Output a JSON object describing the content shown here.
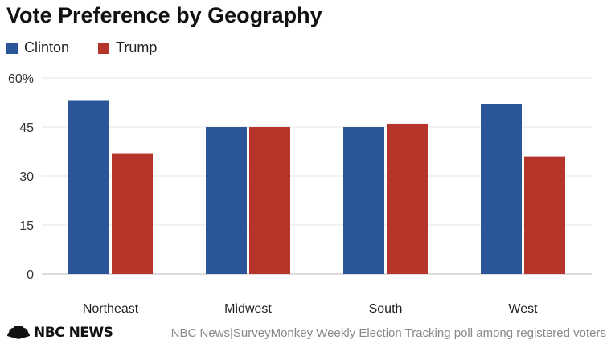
{
  "chart_data": {
    "type": "bar",
    "title": "Vote Preference by Geography",
    "categories": [
      "Northeast",
      "Midwest",
      "South",
      "West"
    ],
    "series": [
      {
        "name": "Clinton",
        "values": [
          53,
          45,
          45,
          52
        ],
        "color": "#2a5699"
      },
      {
        "name": "Trump",
        "values": [
          37,
          45,
          46,
          36
        ],
        "color": "#b5352b"
      }
    ],
    "ylim": [
      0,
      60
    ],
    "yticks": [
      {
        "value": 0,
        "label": "0"
      },
      {
        "value": 15,
        "label": "15"
      },
      {
        "value": 30,
        "label": "30"
      },
      {
        "value": 45,
        "label": "45"
      },
      {
        "value": 60,
        "label": "60%"
      }
    ],
    "grid": true,
    "legend": "top-left",
    "xlabel": "",
    "ylabel": ""
  },
  "footer": {
    "logo_text": "NBC NEWS",
    "logo_icon": "peacock-icon",
    "source": "NBC News|SurveyMonkey Weekly Election Tracking poll among registered voters"
  }
}
